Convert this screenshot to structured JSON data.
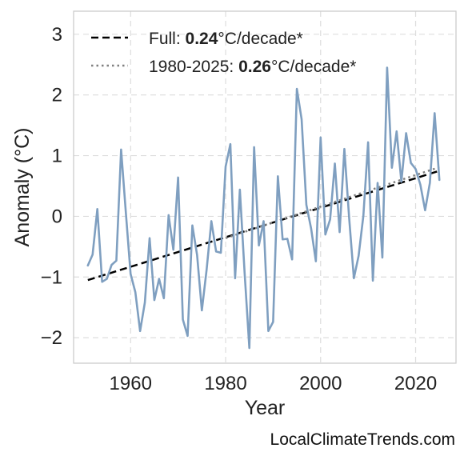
{
  "chart_data": {
    "type": "line",
    "xlabel": "Year",
    "ylabel": "Anomaly (°C)",
    "xlim": [
      1948,
      2028.5
    ],
    "ylim": [
      -2.42,
      3.38
    ],
    "xticks": [
      1960,
      1980,
      2000,
      2020
    ],
    "yticks": [
      -2,
      -1,
      0,
      1,
      2,
      3
    ],
    "ytick_labels": [
      "−2",
      "−1",
      "0",
      "1",
      "2",
      "3"
    ],
    "grid": true,
    "legend_position": "top-left",
    "series": [
      {
        "type": "anomaly",
        "color": "#7f9fc0",
        "x": [
          1951,
          1952,
          1953,
          1954,
          1955,
          1956,
          1957,
          1958,
          1959,
          1960,
          1961,
          1962,
          1963,
          1964,
          1965,
          1966,
          1967,
          1968,
          1969,
          1970,
          1971,
          1972,
          1973,
          1974,
          1975,
          1976,
          1977,
          1978,
          1979,
          1980,
          1981,
          1982,
          1983,
          1984,
          1985,
          1986,
          1987,
          1988,
          1989,
          1990,
          1991,
          1992,
          1993,
          1994,
          1995,
          1996,
          1997,
          1998,
          1999,
          2000,
          2001,
          2002,
          2003,
          2004,
          2005,
          2006,
          2007,
          2008,
          2009,
          2010,
          2011,
          2012,
          2013,
          2014,
          2015,
          2016,
          2017,
          2018,
          2019,
          2020,
          2021,
          2022,
          2023,
          2024,
          2025
        ],
        "y": [
          -0.81,
          -0.63,
          0.12,
          -1.08,
          -1.03,
          -0.8,
          -0.73,
          1.1,
          0.06,
          -0.95,
          -1.25,
          -1.89,
          -1.42,
          -0.36,
          -1.38,
          -1.03,
          -1.35,
          0.02,
          -0.55,
          0.64,
          -1.7,
          -1.97,
          -0.15,
          -0.64,
          -1.55,
          -0.88,
          -0.08,
          -0.58,
          -0.6,
          0.82,
          1.19,
          -1.02,
          0.44,
          -0.93,
          -2.17,
          1.14,
          -0.48,
          -0.08,
          -1.89,
          -1.74,
          0.66,
          -0.38,
          -0.37,
          -0.71,
          2.1,
          1.6,
          0.19,
          -0.2,
          -0.74,
          1.3,
          -0.3,
          -0.05,
          0.87,
          -0.26,
          1.11,
          -0.02,
          -1.02,
          -0.65,
          0.01,
          1.22,
          -1.06,
          0.55,
          -0.68,
          2.45,
          0.8,
          1.4,
          0.57,
          1.37,
          0.88,
          0.78,
          0.52,
          0.1,
          0.55,
          1.7,
          0.6
        ]
      },
      {
        "type": "trend-full",
        "name_prefix": "Full: ",
        "name_value": "0.24",
        "name_suffix": "°C/decade*",
        "color": "#000000",
        "style": "dashed",
        "x": [
          1951,
          2025
        ],
        "y": [
          -1.05,
          0.75
        ]
      },
      {
        "type": "trend-1980",
        "name_prefix": "1980-2025: ",
        "name_value": "0.26",
        "name_suffix": "°C/decade*",
        "color": "#808080",
        "style": "dotted",
        "x": [
          1980,
          2025
        ],
        "y": [
          -0.36,
          0.81
        ]
      }
    ]
  },
  "footer": "LocalClimateTrends.com"
}
